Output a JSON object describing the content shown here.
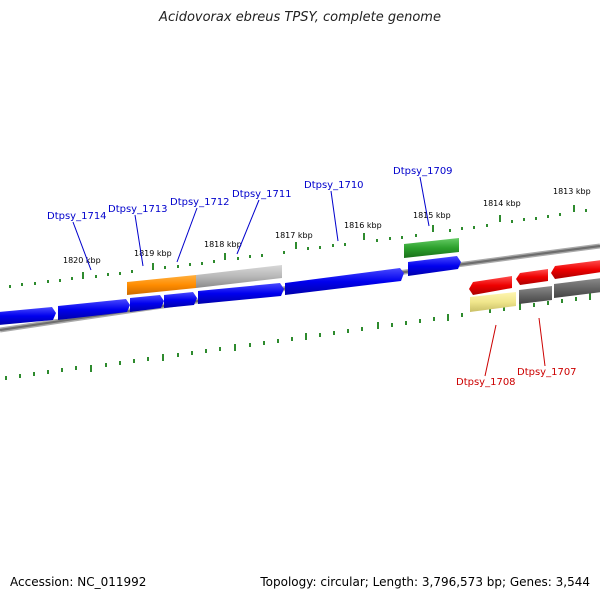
{
  "title": "Acidovorax ebreus TPSY, complete genome",
  "footer": {
    "accession": "Accession: NC_011992",
    "stats": "Topology: circular; Length: 3,796,573 bp; Genes: 3,544"
  },
  "scale_labels": [
    "1820 kbp",
    "1819 kbp",
    "1818 kbp",
    "1817 kbp",
    "1816 kbp",
    "1815 kbp",
    "1814 kbp",
    "1813 kbp"
  ],
  "gene_labels": [
    {
      "name": "Dtpsy_1714",
      "strand": "forward"
    },
    {
      "name": "Dtpsy_1713",
      "strand": "forward"
    },
    {
      "name": "Dtpsy_1712",
      "strand": "forward"
    },
    {
      "name": "Dtpsy_1711",
      "strand": "forward"
    },
    {
      "name": "Dtpsy_1710",
      "strand": "forward"
    },
    {
      "name": "Dtpsy_1709",
      "strand": "forward"
    },
    {
      "name": "Dtpsy_1708",
      "strand": "reverse"
    },
    {
      "name": "Dtpsy_1707",
      "strand": "reverse"
    }
  ],
  "colors": {
    "forward_label": "#0000cc",
    "reverse_label": "#cc0000",
    "forward_gene": "#0000ee",
    "reverse_gene": "#ee0000",
    "orange_gene": "#ff8c00",
    "grey_gene": "#b0b0b0",
    "dark_grey_gene": "#666666",
    "green_gene": "#2ca02c",
    "yellow_gene": "#f0e68c",
    "backbone": "#777777",
    "tick": "#2e8b2e"
  }
}
